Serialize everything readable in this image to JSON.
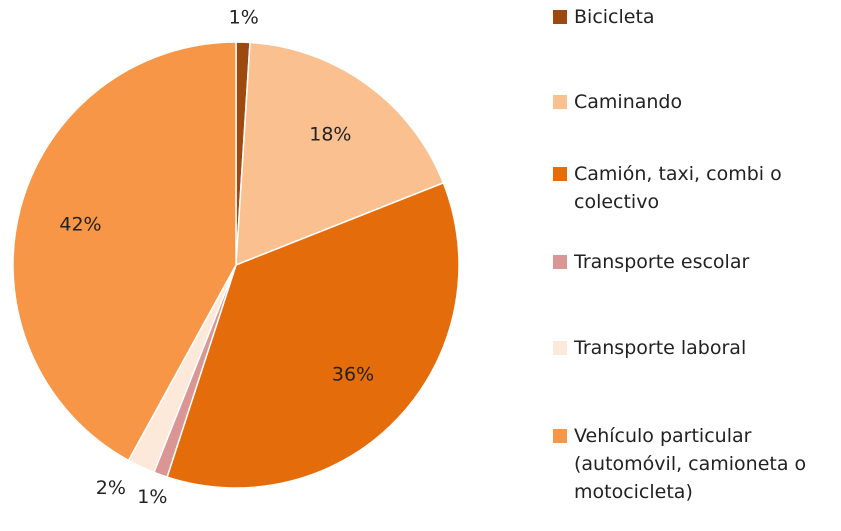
{
  "chart_data": {
    "type": "pie",
    "categories": [
      "Bicicleta",
      "Caminando",
      "Camión, taxi, combi o colectivo",
      "Transporte escolar",
      "Transporte laboral",
      "Vehículo particular (automóvil, camioneta o motocicleta)"
    ],
    "values": [
      1,
      18,
      36,
      1,
      2,
      42
    ],
    "value_labels": [
      "1%",
      "18%",
      "36%",
      "1%",
      "2%",
      "42%"
    ],
    "colors": [
      "#9c4a10",
      "#fac090",
      "#e46c0a",
      "#d99694",
      "#fde9d9",
      "#f79646"
    ],
    "legend": "right"
  }
}
